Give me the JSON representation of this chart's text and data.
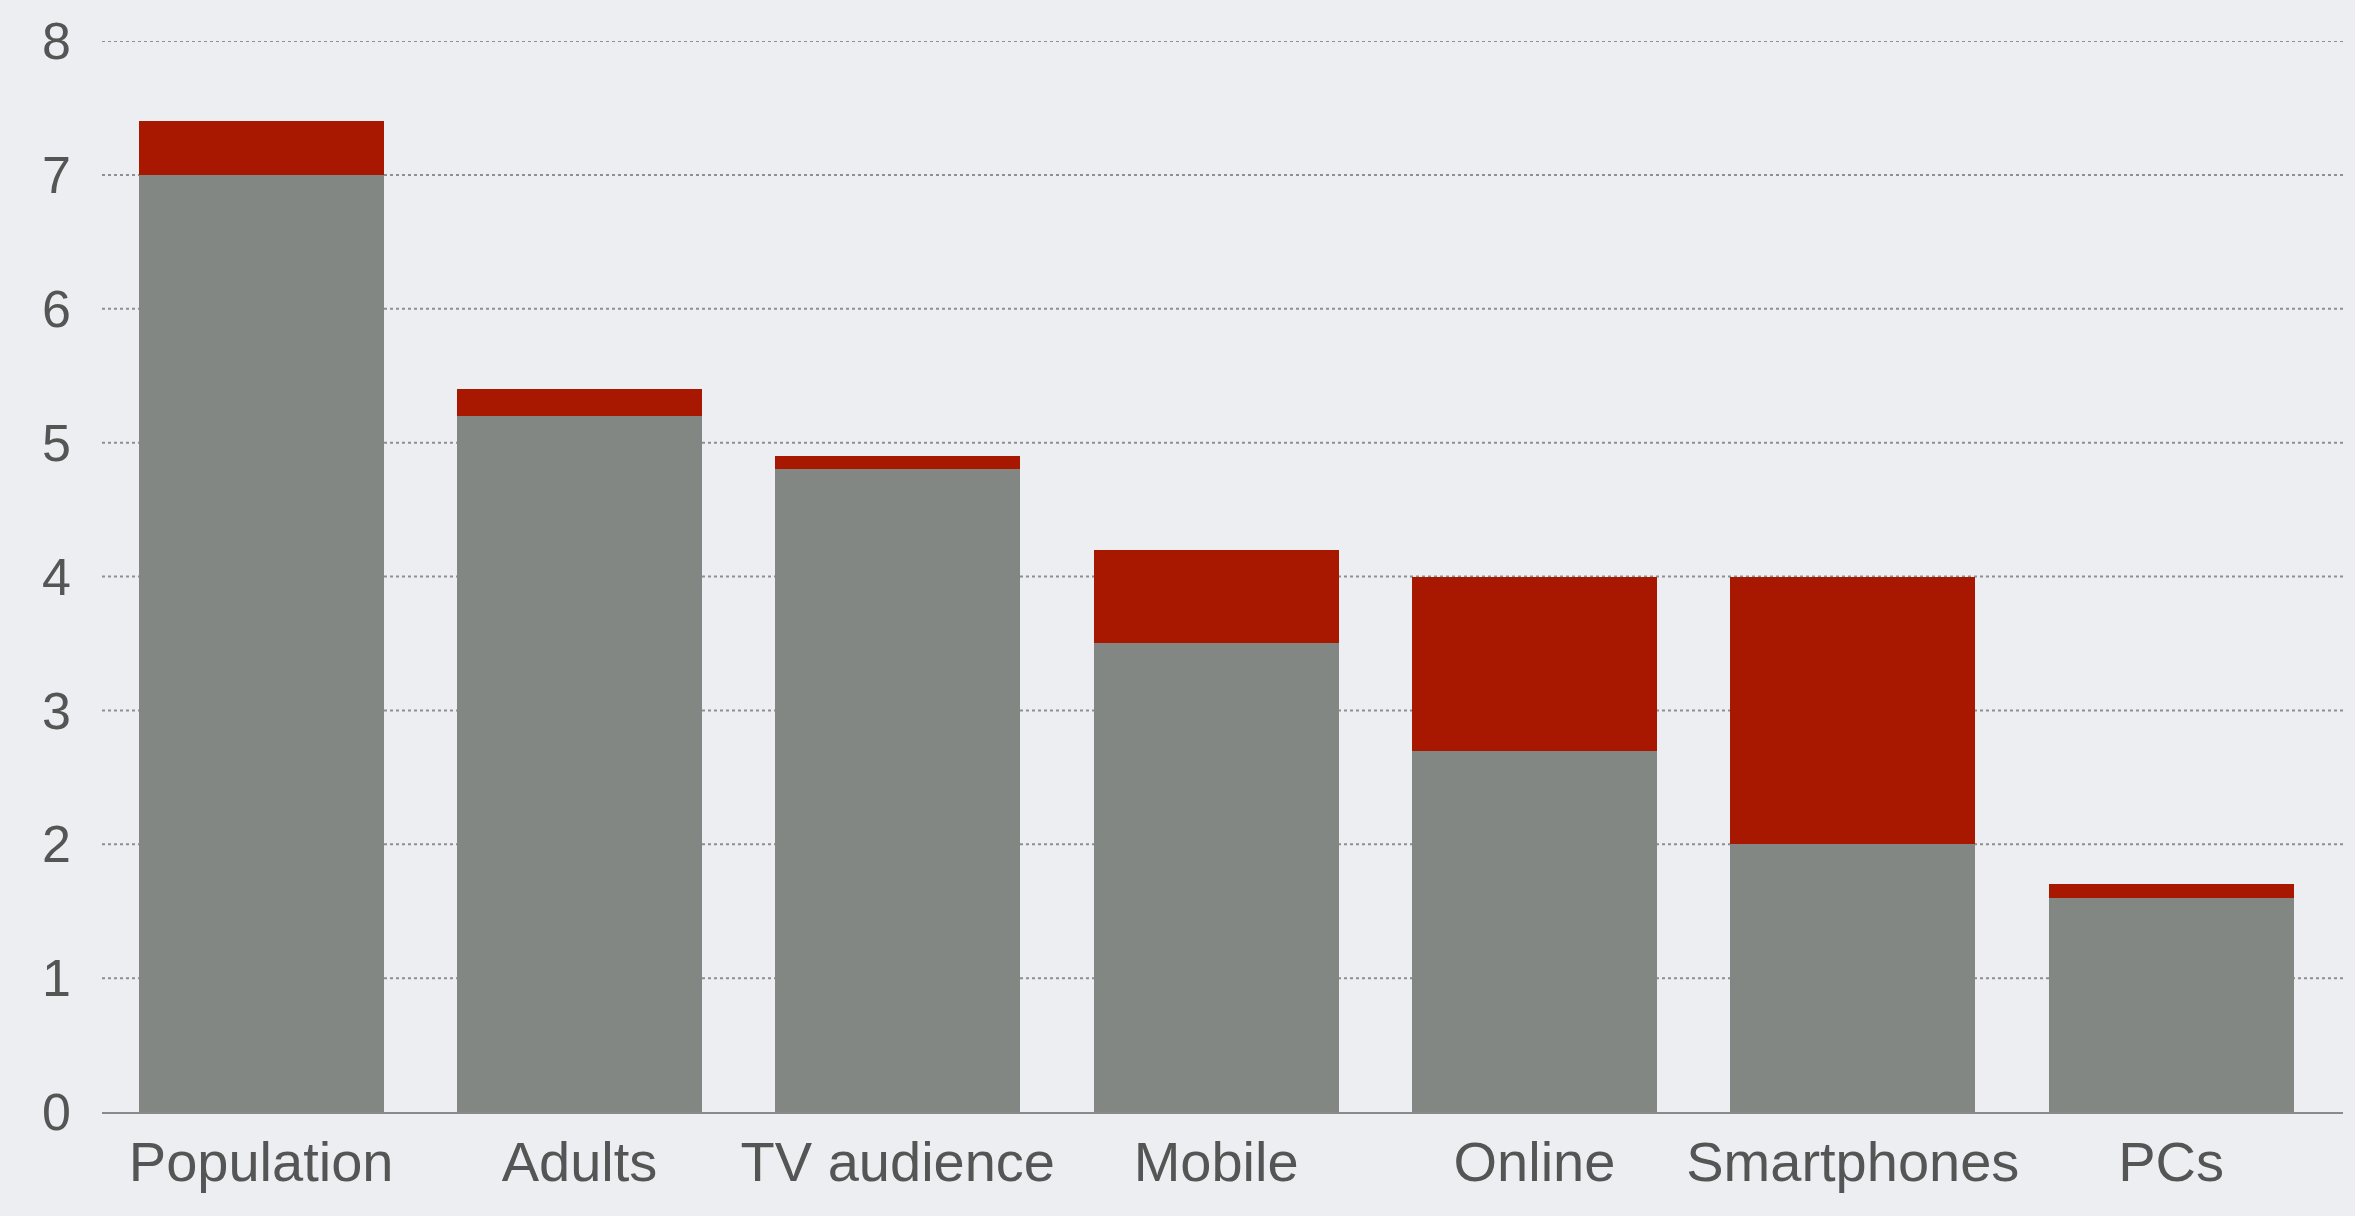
{
  "chart_data": {
    "type": "bar",
    "stacked": true,
    "categories": [
      "Population",
      "Adults",
      "TV audience",
      "Mobile",
      "Online",
      "Smartphones",
      "PCs"
    ],
    "series": [
      {
        "color": "#828784",
        "values": [
          7.0,
          5.2,
          4.8,
          3.5,
          2.7,
          2.0,
          1.6
        ]
      },
      {
        "color": "#a81800",
        "values": [
          0.4,
          0.2,
          0.1,
          0.7,
          1.3,
          2.0,
          0.1
        ]
      }
    ],
    "ylim": [
      0,
      8
    ],
    "yticks": [
      0,
      1,
      2,
      3,
      4,
      5,
      6,
      7,
      8
    ],
    "grid": "y"
  }
}
